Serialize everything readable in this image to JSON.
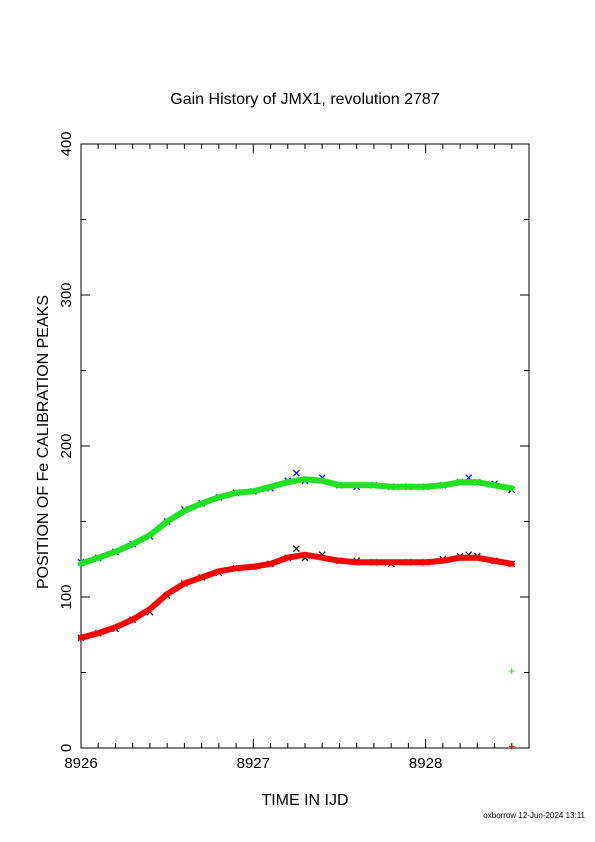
{
  "chart_data": {
    "type": "line",
    "title": "Gain History of JMX1, revolution 2787",
    "xlabel": "TIME IN IJD",
    "ylabel": "POSITION OF Fe CALIBRATION PEAKS",
    "xlim": [
      8926.0,
      8928.6
    ],
    "ylim": [
      0,
      400
    ],
    "x_ticks": [
      8926,
      8927,
      8928
    ],
    "x_tick_labels": [
      "8926",
      "8927",
      "8928"
    ],
    "y_ticks": [
      0,
      100,
      200,
      300,
      400
    ],
    "y_tick_labels": [
      "0",
      "100",
      "200",
      "300",
      "400"
    ],
    "grid": false,
    "colors": {
      "upper_fit": "#22e022",
      "upper_points": "#0000ff",
      "lower_fit": "#ff0000",
      "lower_points": "#000000"
    },
    "series": [
      {
        "marker": "x",
        "x": [
          8926.0,
          8926.1,
          8926.2,
          8926.3,
          8926.4,
          8926.5,
          8926.6,
          8926.7,
          8926.8,
          8926.9,
          8927.0,
          8927.1,
          8927.2,
          8927.25,
          8927.3,
          8927.4,
          8927.5,
          8927.6,
          8927.7,
          8927.8,
          8927.9,
          8928.0,
          8928.1,
          8928.2,
          8928.25,
          8928.3,
          8928.4,
          8928.5
        ],
        "values": [
          123,
          126,
          130,
          135,
          140,
          150,
          158,
          162,
          166,
          169,
          170,
          172,
          177,
          182,
          177,
          179,
          174,
          173,
          174,
          173,
          173,
          173,
          174,
          176,
          179,
          176,
          175,
          171
        ]
      },
      {
        "marker": "line",
        "x": [
          8926.0,
          8926.1,
          8926.2,
          8926.3,
          8926.4,
          8926.5,
          8926.6,
          8926.7,
          8926.8,
          8926.9,
          8927.0,
          8927.1,
          8927.2,
          8927.3,
          8927.4,
          8927.5,
          8927.6,
          8927.7,
          8927.8,
          8927.9,
          8928.0,
          8928.1,
          8928.2,
          8928.3,
          8928.4,
          8928.5
        ],
        "values": [
          122,
          126,
          130,
          135,
          141,
          150,
          157,
          162,
          166,
          169,
          170,
          173,
          176,
          178,
          177,
          174,
          174,
          174,
          173,
          173,
          173,
          174,
          176,
          176,
          174,
          172
        ]
      },
      {
        "marker": "x",
        "x": [
          8926.0,
          8926.1,
          8926.2,
          8926.3,
          8926.4,
          8926.5,
          8926.6,
          8926.7,
          8926.8,
          8926.9,
          8927.0,
          8927.1,
          8927.2,
          8927.25,
          8927.3,
          8927.4,
          8927.5,
          8927.6,
          8927.7,
          8927.8,
          8927.9,
          8928.0,
          8928.1,
          8928.2,
          8928.25,
          8928.3,
          8928.4,
          8928.5
        ],
        "values": [
          73,
          76,
          79,
          85,
          90,
          101,
          109,
          113,
          116,
          119,
          120,
          122,
          126,
          132,
          126,
          128,
          124,
          124,
          123,
          122,
          123,
          123,
          125,
          127,
          128,
          127,
          124,
          122
        ]
      },
      {
        "marker": "line",
        "x": [
          8926.0,
          8926.1,
          8926.2,
          8926.3,
          8926.4,
          8926.5,
          8926.6,
          8926.7,
          8926.8,
          8926.9,
          8927.0,
          8927.1,
          8927.2,
          8927.3,
          8927.4,
          8927.5,
          8927.6,
          8927.7,
          8927.8,
          8927.9,
          8928.0,
          8928.1,
          8928.2,
          8928.3,
          8928.4,
          8928.5
        ],
        "values": [
          73,
          76,
          80,
          85,
          92,
          102,
          109,
          113,
          117,
          119,
          120,
          122,
          126,
          128,
          126,
          124,
          123,
          123,
          123,
          123,
          123,
          124,
          126,
          126,
          124,
          122
        ]
      }
    ],
    "annotations": [
      {
        "marker": "+",
        "color": "#22e022",
        "x": 8928.5,
        "y": 51
      },
      {
        "marker": "+",
        "color": "#ff0000",
        "x": 8928.5,
        "y": 1
      }
    ]
  },
  "footer": "oxborrow 12-Jun-2024 13:11"
}
